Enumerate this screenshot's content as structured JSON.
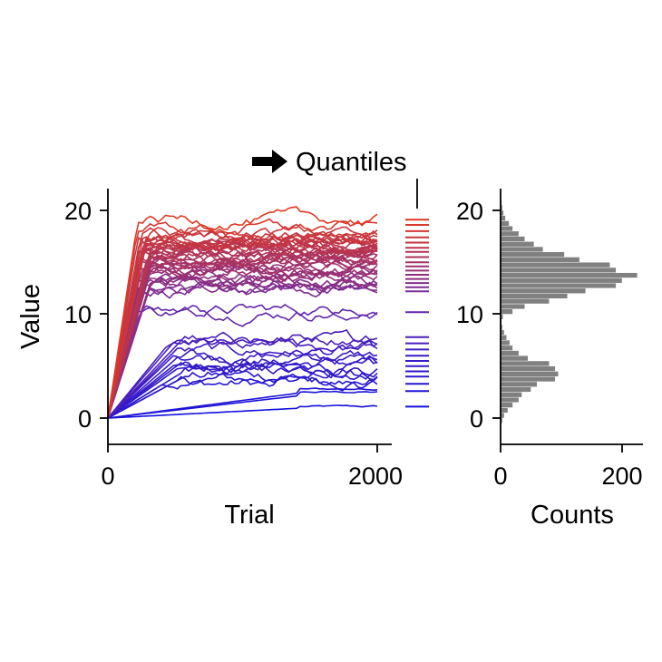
{
  "chart_data": [
    {
      "type": "line",
      "ylabel": "Value",
      "xlabel": "Trial",
      "xlim": [
        0,
        2000
      ],
      "ylim": [
        -2.5,
        22
      ],
      "xticks": [
        "0",
        "2000"
      ],
      "yticks": [
        "0",
        "10",
        "20"
      ],
      "grid": false,
      "color_scale": {
        "low": "#1010e0",
        "mid": "#6a2aa8",
        "high": "#e83a1a"
      },
      "series_count": 60,
      "series_final_values": [
        1.1,
        2.5,
        2.8,
        3.3,
        3.7,
        4.1,
        4.4,
        4.7,
        5.0,
        5.3,
        5.6,
        6.0,
        6.4,
        6.9,
        7.3,
        7.8,
        10.2,
        10.4,
        12.2,
        12.5,
        12.7,
        12.9,
        13.1,
        13.3,
        13.5,
        13.7,
        13.9,
        14.0,
        14.2,
        14.4,
        14.5,
        14.7,
        14.8,
        15.0,
        15.1,
        15.2,
        15.3,
        15.4,
        15.5,
        15.6,
        15.7,
        15.8,
        15.9,
        16.0,
        16.1,
        16.2,
        16.4,
        16.5,
        16.6,
        16.7,
        16.8,
        16.9,
        17.0,
        17.1,
        17.2,
        17.4,
        17.6,
        17.8,
        18.3,
        19.1
      ],
      "rise_trial": 220
    },
    {
      "type": "strip",
      "annotation": "Quantiles",
      "quantile_values": [
        1.1,
        2.6,
        3.3,
        4.0,
        4.5,
        5.0,
        5.5,
        6.0,
        6.6,
        7.2,
        7.8,
        10.2,
        12.2,
        12.6,
        13.0,
        13.4,
        13.8,
        14.2,
        14.6,
        15.0,
        15.5,
        16.0,
        16.4,
        16.9,
        17.4,
        18.0,
        18.6,
        19.1
      ]
    },
    {
      "type": "bar",
      "orientation": "horizontal",
      "xlabel": "Counts",
      "xlim": [
        0,
        235
      ],
      "ylim": [
        -2.5,
        22
      ],
      "xticks": [
        "0",
        "200"
      ],
      "yticks": [
        "0",
        "10",
        "20"
      ],
      "bar_color": "#808080",
      "bin_width": 0.5,
      "bins_start": [
        -0.5,
        0.0,
        0.5,
        1.0,
        1.5,
        2.0,
        2.5,
        3.0,
        3.5,
        4.0,
        4.5,
        5.0,
        5.5,
        6.0,
        6.5,
        7.0,
        7.5,
        8.0,
        8.5,
        9.0,
        9.5,
        10.0,
        10.5,
        11.0,
        11.5,
        12.0,
        12.5,
        13.0,
        13.5,
        14.0,
        14.5,
        15.0,
        15.5,
        16.0,
        16.5,
        17.0,
        17.5,
        18.0,
        18.5,
        19.0,
        19.5,
        20.0,
        20.5,
        21.0
      ],
      "counts": [
        3,
        6,
        12,
        20,
        30,
        35,
        50,
        60,
        90,
        95,
        90,
        80,
        45,
        30,
        20,
        15,
        10,
        6,
        3,
        2,
        4,
        20,
        40,
        80,
        110,
        140,
        190,
        200,
        225,
        190,
        180,
        130,
        105,
        70,
        55,
        40,
        30,
        20,
        14,
        8,
        5,
        3,
        2,
        1
      ]
    }
  ]
}
